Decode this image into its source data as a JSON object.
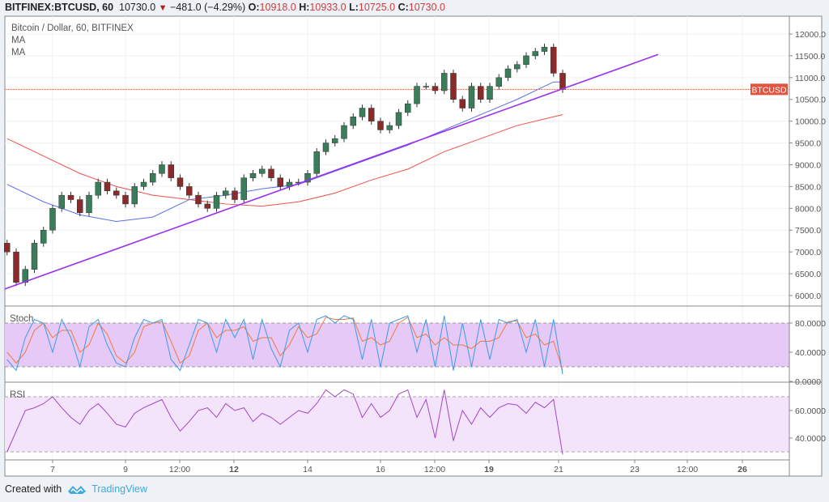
{
  "header": {
    "symbol": "BITFINEX:BTCUSD, 60",
    "last": "10730.0",
    "change": "−481.0 (−4.29%)",
    "o_label": "O:",
    "o": "10918.0",
    "h_label": "H:",
    "h": "10933.0",
    "l_label": "L:",
    "l": "10725.0",
    "c_label": "C:",
    "c": "10730.0"
  },
  "legend": {
    "title": "Bitcoin / Dollar, 60, BITFINEX",
    "ma1": "MA",
    "ma2": "MA",
    "stoch": "Stoch",
    "rsi": "RSI"
  },
  "price_label": "BTCUSD",
  "footer": {
    "created_with": "Created with",
    "brand": "TradingView"
  },
  "colors": {
    "up": "#3a7d5a",
    "down": "#8b2a2a",
    "ma_fast": "#5b6ee8",
    "ma_slow": "#f0504a",
    "trendline": "#9b30f0",
    "stoch_k": "#3d9be9",
    "stoch_d": "#f07a3c",
    "rsi": "#a347c8",
    "band_stoch": "#e6c9f7",
    "band_rsi": "#f3e3fb",
    "last_price": "#e0533f"
  },
  "chart_data": {
    "type": "candlestick",
    "x_ticks": [
      "7",
      "9",
      "12:00",
      "12",
      "14",
      "16",
      "12:00",
      "19",
      "21",
      "23",
      "12:00",
      "26"
    ],
    "y_ticks": [
      "12000.0",
      "11500.0",
      "11000.0",
      "10500.0",
      "10000.0",
      "9500.0",
      "9000.0",
      "8500.0",
      "8000.0",
      "7500.0",
      "7000.0",
      "6500.0",
      "6000.0"
    ],
    "ylim": [
      5750,
      12400
    ],
    "last_price": 10730,
    "interval": "6h",
    "start": "5 18:00",
    "closes": [
      7000,
      6300,
      6600,
      7200,
      7500,
      8000,
      8300,
      8200,
      7900,
      8300,
      8600,
      8400,
      8300,
      8100,
      8500,
      8600,
      8800,
      9000,
      8700,
      8500,
      8300,
      8100,
      8000,
      8300,
      8400,
      8200,
      8700,
      8800,
      8900,
      8700,
      8500,
      8600,
      8600,
      8800,
      9300,
      9500,
      9600,
      9900,
      10100,
      10300,
      10000,
      9800,
      9900,
      10200,
      10400,
      10800,
      10800,
      10700,
      11100,
      10500,
      10300,
      10800,
      10500,
      10800,
      11000,
      11200,
      11300,
      11500,
      11600,
      11700,
      11100,
      10730
    ],
    "ma_fast_every4": [
      8550,
      8150,
      7850,
      7700,
      7800,
      8200,
      8300,
      8450,
      8550,
      8850,
      9150,
      9450,
      9800,
      10150,
      10500,
      10900,
      10900
    ],
    "ma_slow_every4": [
      9600,
      9200,
      8800,
      8500,
      8300,
      8200,
      8100,
      8050,
      8150,
      8350,
      8650,
      8900,
      9300,
      9600,
      9900,
      10100,
      10150
    ],
    "trendline": [
      {
        "x": "5 16:00",
        "y": 6150
      },
      {
        "x": "23 14:00",
        "y": 11530
      }
    ],
    "stoch": {
      "y_ticks": [
        "80.0000",
        "40.0000",
        "0.0000"
      ],
      "band": [
        20,
        80
      ],
      "k": [
        30,
        15,
        60,
        85,
        80,
        40,
        85,
        60,
        20,
        75,
        85,
        50,
        25,
        20,
        60,
        85,
        80,
        85,
        30,
        15,
        50,
        85,
        80,
        40,
        85,
        60,
        85,
        30,
        85,
        45,
        20,
        70,
        80,
        40,
        85,
        90,
        80,
        90,
        85,
        30,
        85,
        20,
        80,
        85,
        90,
        40,
        85,
        20,
        90,
        15,
        80,
        20,
        85,
        30,
        85,
        80,
        85,
        40,
        85,
        20,
        85,
        10
      ],
      "d": [
        40,
        25,
        40,
        70,
        80,
        60,
        70,
        70,
        40,
        50,
        80,
        65,
        35,
        25,
        40,
        75,
        80,
        82,
        55,
        25,
        35,
        70,
        80,
        60,
        70,
        70,
        75,
        55,
        60,
        60,
        35,
        50,
        75,
        60,
        65,
        88,
        85,
        85,
        87,
        55,
        60,
        50,
        55,
        80,
        88,
        60,
        65,
        50,
        60,
        50,
        50,
        45,
        55,
        55,
        60,
        82,
        83,
        60,
        65,
        50,
        55,
        15
      ]
    },
    "rsi": {
      "y_ticks": [
        "60.0000",
        "40.0000"
      ],
      "band": [
        30,
        70
      ],
      "values": [
        30,
        45,
        60,
        62,
        65,
        70,
        62,
        55,
        50,
        60,
        65,
        58,
        50,
        48,
        58,
        62,
        65,
        68,
        55,
        45,
        52,
        60,
        62,
        55,
        65,
        60,
        62,
        52,
        58,
        55,
        50,
        55,
        60,
        58,
        65,
        75,
        70,
        75,
        72,
        55,
        65,
        55,
        60,
        72,
        75,
        55,
        68,
        40,
        75,
        38,
        60,
        50,
        62,
        55,
        62,
        65,
        64,
        58,
        66,
        62,
        68,
        28
      ]
    }
  }
}
